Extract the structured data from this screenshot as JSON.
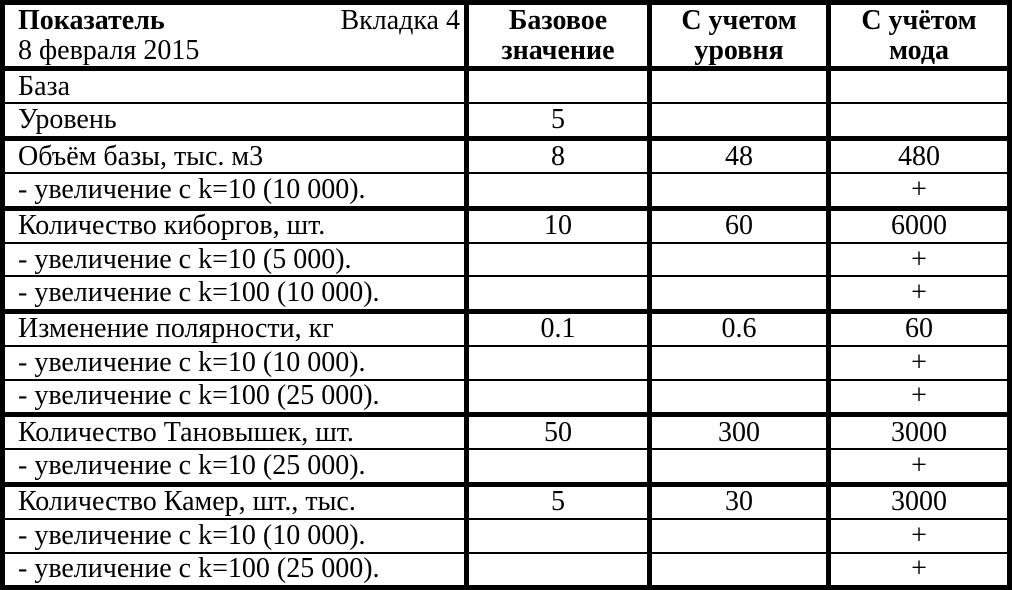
{
  "table": {
    "header": {
      "indicator": "Показатель",
      "tab": "Вкладка 4",
      "date": "8 февраля 2015",
      "base": "Базовое значение",
      "level": "С учетом уровня",
      "mod": "С учётом мода"
    },
    "rows": [
      {
        "label": "База",
        "base": "",
        "level": "",
        "mod": "",
        "section": false
      },
      {
        "label": "Уровень",
        "base": "5",
        "level": "",
        "mod": "",
        "section": false
      },
      {
        "label": "Объём базы, тыс. м3",
        "base": "8",
        "level": "48",
        "mod": "480",
        "section": true
      },
      {
        "label": "- увеличение с k=10 (10 000).",
        "base": "",
        "level": "",
        "mod": "+",
        "section": false
      },
      {
        "label": "Количество киборгов, шт.",
        "base": "10",
        "level": "60",
        "mod": "6000",
        "section": true
      },
      {
        "label": "- увеличение с k=10 (5 000).",
        "base": "",
        "level": "",
        "mod": "+",
        "section": false
      },
      {
        "label": "- увеличение с k=100 (10 000).",
        "base": "",
        "level": "",
        "mod": "+",
        "section": false
      },
      {
        "label": "Изменение полярности, кг",
        "base": "0.1",
        "level": "0.6",
        "mod": "60",
        "section": true
      },
      {
        "label": "- увеличение с k=10 (10 000).",
        "base": "",
        "level": "",
        "mod": "+",
        "section": false
      },
      {
        "label": "- увеличение с k=100 (25 000).",
        "base": "",
        "level": "",
        "mod": "+",
        "section": false
      },
      {
        "label": "Количество Тановышек, шт.",
        "base": "50",
        "level": "300",
        "mod": "3000",
        "section": true
      },
      {
        "label": "- увеличение с k=10 (25 000).",
        "base": "",
        "level": "",
        "mod": "+",
        "section": false
      },
      {
        "label": "Количество Камер, шт., тыс.",
        "base": "5",
        "level": "30",
        "mod": "3000",
        "section": true
      },
      {
        "label": "- увеличение с k=10 (10 000).",
        "base": "",
        "level": "",
        "mod": "+",
        "section": false
      },
      {
        "label": "- увеличение с k=100 (25 000).",
        "base": "",
        "level": "",
        "mod": "+",
        "section": false
      }
    ]
  }
}
